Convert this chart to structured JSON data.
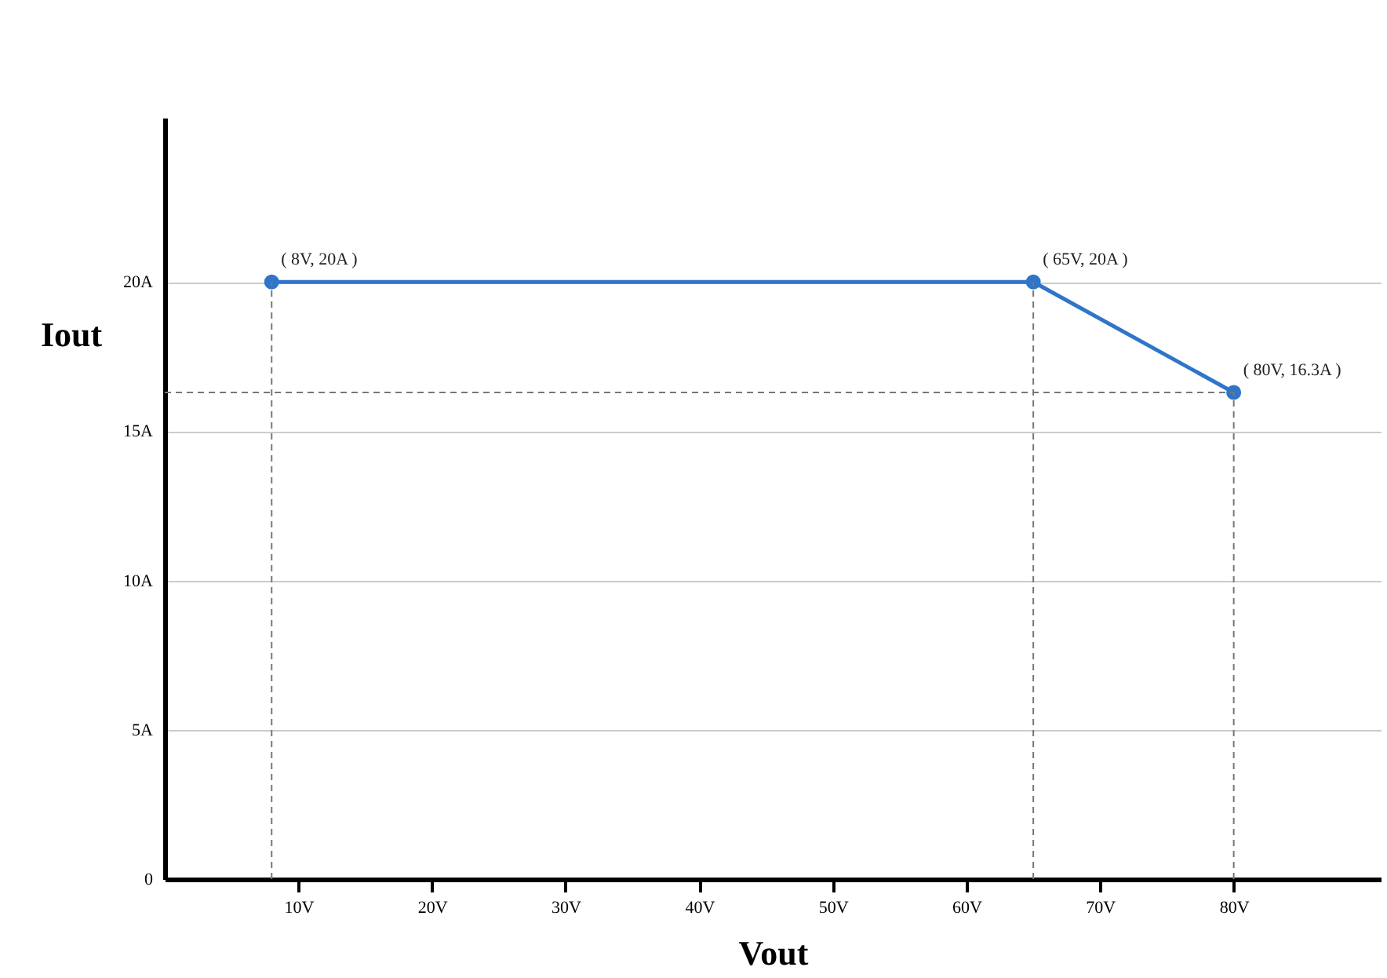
{
  "chart_data": {
    "type": "line",
    "xlabel": "Vout",
    "ylabel": "Iout",
    "x": [
      8,
      65,
      80
    ],
    "series": [
      {
        "color": "#2f75c8",
        "values": [
          20,
          20,
          16.3
        ]
      }
    ],
    "xlim": [
      0,
      91
    ],
    "ylim": [
      0,
      25.5
    ],
    "xticks": [
      {
        "value": 10,
        "label": "10V"
      },
      {
        "value": 20,
        "label": "20V"
      },
      {
        "value": 30,
        "label": "30V"
      },
      {
        "value": 40,
        "label": "40V"
      },
      {
        "value": 50,
        "label": "50V"
      },
      {
        "value": 60,
        "label": "60V"
      },
      {
        "value": 70,
        "label": "70V"
      },
      {
        "value": 80,
        "label": "80V"
      }
    ],
    "yticks": [
      {
        "value": 0,
        "label": "0"
      },
      {
        "value": 5,
        "label": "5A"
      },
      {
        "value": 10,
        "label": "10A"
      },
      {
        "value": 15,
        "label": "15A"
      },
      {
        "value": 20,
        "label": "20A"
      }
    ],
    "grid": "y",
    "marker": "circle",
    "line_style": "solid",
    "ref_lines": [
      {
        "axis": "x",
        "value": 8,
        "color": "#777777",
        "line_style": "dashed"
      },
      {
        "axis": "x",
        "value": 65,
        "color": "#777777",
        "line_style": "dashed"
      },
      {
        "axis": "x",
        "value": 80,
        "color": "#777777",
        "line_style": "dashed"
      },
      {
        "axis": "y",
        "value": 16.3,
        "color": "#777777",
        "line_style": "dashed"
      }
    ],
    "annotations": [
      {
        "text": "( 8V, 20A )",
        "x": 8,
        "y": 20
      },
      {
        "text": "( 65V, 20A )",
        "x": 65,
        "y": 20
      },
      {
        "text": "( 80V, 16.3A )",
        "x": 80,
        "y": 16.3
      }
    ]
  }
}
